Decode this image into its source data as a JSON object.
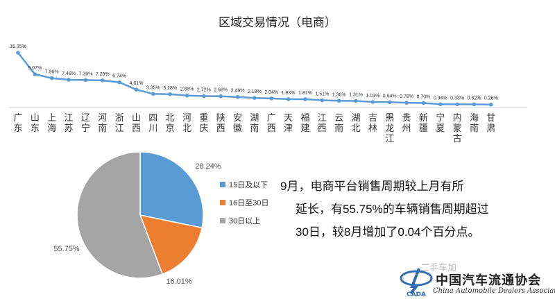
{
  "chart_data": [
    {
      "type": "line",
      "title": "区域交易情况（电商）",
      "categories": [
        "广东",
        "山东",
        "上海",
        "江苏",
        "辽宁",
        "河南",
        "浙江",
        "山西",
        "四川",
        "北京",
        "河北",
        "重庆",
        "陕西",
        "安徽",
        "湖南",
        "广西",
        "天津",
        "福建",
        "江西",
        "云南",
        "湖北",
        "吉林",
        "黑龙江",
        "贵州",
        "新疆",
        "宁夏",
        "内蒙古",
        "海南",
        "甘肃"
      ],
      "values": [
        15.35,
        9.07,
        7.96,
        7.48,
        7.39,
        7.29,
        6.74,
        4.61,
        3.35,
        3.28,
        2.88,
        2.72,
        2.68,
        2.48,
        2.18,
        2.04,
        1.83,
        1.81,
        1.51,
        1.36,
        1.31,
        1.01,
        0.94,
        0.78,
        0.7,
        0.34,
        0.33,
        0.32,
        0.26
      ],
      "value_labels": [
        "15.35%",
        "9.07%",
        "7.96%",
        "7.48%",
        "7.39%",
        "7.29%",
        "6.74%",
        "4.61%",
        "3.35%",
        "3.28%",
        "2.88%",
        "2.72%",
        "2.68%",
        "2.48%",
        "2.18%",
        "2.04%",
        "1.83%",
        "1.81%",
        "1.51%",
        "1.36%",
        "1.31%",
        "1.01%",
        "0.94%",
        "0.78%",
        "0.70%",
        "0.34%",
        "0.33%",
        "0.32%",
        "0.26%"
      ],
      "ylim": [
        0,
        16
      ],
      "grid": false,
      "color": "#5b9bd5"
    },
    {
      "type": "pie",
      "slices": [
        {
          "label": "15日及以下",
          "value": 28.24,
          "text": "28.24%",
          "color": "#5b9bd5"
        },
        {
          "label": "16日至30日",
          "value": 16.01,
          "text": "16.01%",
          "color": "#ed7d31"
        },
        {
          "label": "30日以上",
          "value": 55.75,
          "text": "55.75%",
          "color": "#a5a5a5"
        }
      ],
      "legend_position": "right"
    }
  ],
  "note": {
    "line1": "9月，电商平台销售周期较上月有所",
    "line2": "延长，有55.75%的车辆销售周期超过",
    "line3": "30日，较8月增加了0.04个百分点。"
  },
  "watermark": "二手车加",
  "logo": {
    "abbr": "CADA",
    "cn": "中国汽车流通协会",
    "en": "China Automobile Dealers Association"
  }
}
